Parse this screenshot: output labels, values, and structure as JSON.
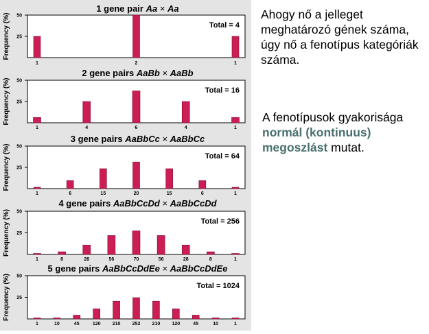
{
  "chart_data": [
    {
      "type": "bar",
      "title_prefix": "1 gene pair",
      "cross_left": "Aa",
      "times": "×",
      "cross_right": "Aa",
      "total": "Total = 4",
      "ylabel": "Frequency (%)",
      "ylim": [
        0,
        50
      ],
      "yticks": [
        "25",
        "50"
      ],
      "categories": [
        "1",
        "2",
        "1"
      ],
      "values": [
        25,
        50,
        25
      ]
    },
    {
      "type": "bar",
      "title_prefix": "2 gene pairs",
      "cross_left": "AaBb",
      "times": "×",
      "cross_right": "AaBb",
      "total": "Total = 16",
      "ylabel": "Frequency (%)",
      "ylim": [
        0,
        50
      ],
      "yticks": [
        "25",
        "50"
      ],
      "categories": [
        "1",
        "4",
        "6",
        "4",
        "1"
      ],
      "values": [
        6.25,
        25,
        37.5,
        25,
        6.25
      ]
    },
    {
      "type": "bar",
      "title_prefix": "3 gene pairs",
      "cross_left": "AaBbCc",
      "times": "×",
      "cross_right": "AaBbCc",
      "total": "Total = 64",
      "ylabel": "Frequency (%)",
      "ylim": [
        0,
        50
      ],
      "yticks": [
        "25",
        "50"
      ],
      "categories": [
        "1",
        "6",
        "15",
        "20",
        "15",
        "6",
        "1"
      ],
      "values": [
        1.6,
        9.4,
        23.4,
        31.3,
        23.4,
        9.4,
        1.6
      ]
    },
    {
      "type": "bar",
      "title_prefix": "4 gene pairs",
      "cross_left": "AaBbCcDd",
      "times": "×",
      "cross_right": "AaBbCcDd",
      "total": "Total = 256",
      "ylabel": "Frequency (%)",
      "ylim": [
        0,
        50
      ],
      "yticks": [
        "25",
        "50"
      ],
      "categories": [
        "1",
        "8",
        "28",
        "56",
        "70",
        "56",
        "28",
        "8",
        "1"
      ],
      "values": [
        0.4,
        3.1,
        10.9,
        21.9,
        27.3,
        21.9,
        10.9,
        3.1,
        0.4
      ]
    },
    {
      "type": "bar",
      "title_prefix": "5 gene pairs",
      "cross_left": "AaBbCcDdEe",
      "times": "×",
      "cross_right": "AaBbCcDdEe",
      "total": "Total = 1024",
      "ylabel": "Frequency (%)",
      "ylim": [
        0,
        50
      ],
      "yticks": [
        "25",
        "50"
      ],
      "categories": [
        "1",
        "10",
        "45",
        "120",
        "210",
        "252",
        "210",
        "120",
        "45",
        "10",
        "1"
      ],
      "values": [
        0.1,
        1.0,
        4.4,
        11.7,
        20.5,
        24.6,
        20.5,
        11.7,
        4.4,
        1.0,
        0.1
      ]
    }
  ],
  "colors": {
    "bar": "#cc1e54",
    "bar_border": "#7a0f2e",
    "frame_bg": "#e4e4e4",
    "plot_bg": "#ffffff"
  },
  "text_block1": "Ahogy nő a jelleget meghatározó gének száma, úgy nő a fenotípus kategóriák száma.",
  "text_block2": {
    "before": "A fenotípusok gyakorisága ",
    "emphasis": "normál (kontinuus) megoszlást",
    "after": " mutat."
  }
}
